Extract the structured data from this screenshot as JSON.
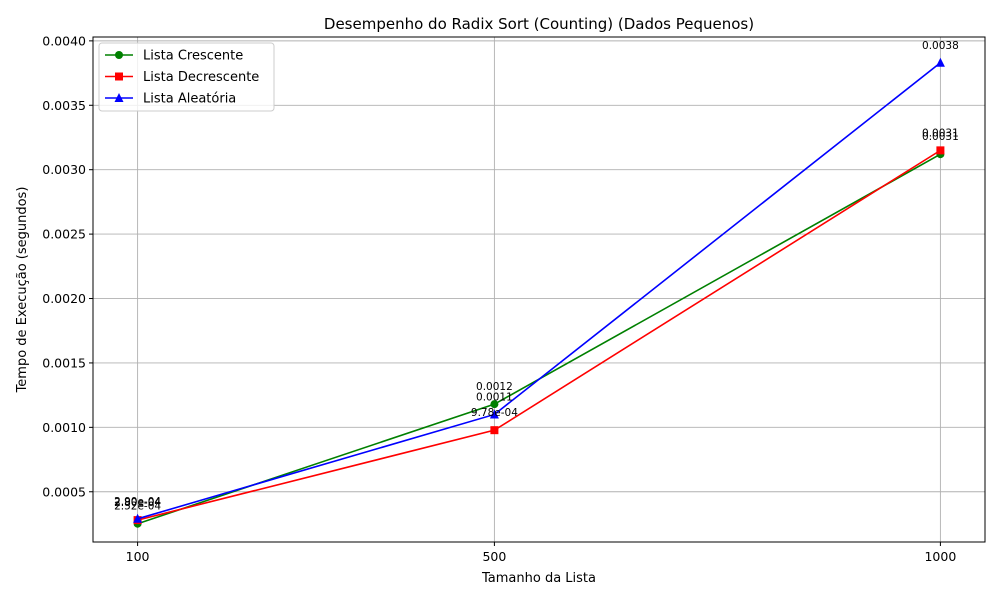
{
  "chart_data": {
    "type": "line",
    "title": "Desempenho do Radix Sort (Counting) (Dados Pequenos)",
    "xlabel": "Tamanho da Lista",
    "ylabel": "Tempo de Execução (segundos)",
    "x": [
      100,
      500,
      1000
    ],
    "x_ticks": [
      "100",
      "500",
      "1000"
    ],
    "y_ticks": [
      "0.0005",
      "0.0010",
      "0.0015",
      "0.0020",
      "0.0025",
      "0.0030",
      "0.0035",
      "0.0040"
    ],
    "ylim": [
      0.00011,
      0.00403
    ],
    "grid": true,
    "legend_position": "top-left",
    "series": [
      {
        "name": "Lista Crescente",
        "color": "#008000",
        "marker": "circle",
        "values": [
          0.000252,
          0.00118,
          0.00312
        ],
        "labels": [
          "2.52e-04",
          "0.0012",
          "0.0031"
        ]
      },
      {
        "name": "Lista Decrescente",
        "color": "#ff0000",
        "marker": "square",
        "values": [
          0.00028,
          0.000978,
          0.00315
        ],
        "labels": [
          "2.80e-04",
          "9.78e-04",
          "0.0031"
        ]
      },
      {
        "name": "Lista Aleatória",
        "color": "#0000ff",
        "marker": "triangle",
        "values": [
          0.00029,
          0.0011,
          0.00383
        ],
        "labels": [
          "2.90e-04",
          "0.0011",
          "0.0038"
        ]
      }
    ]
  }
}
